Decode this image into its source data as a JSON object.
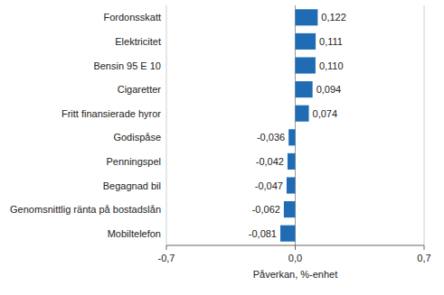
{
  "chart_data": {
    "type": "bar",
    "orientation": "horizontal",
    "x_label": "Påverkan, %-enhet",
    "categories": [
      "Fordonsskatt",
      "Elektricitet",
      "Bensin 95 E 10",
      "Cigaretter",
      "Fritt finansierade hyror",
      "Godispåse",
      "Penningspel",
      "Begagnad bil",
      "Genomsnittlig ränta på bostadslån",
      "Mobiltelefon"
    ],
    "values": [
      0.122,
      0.111,
      0.11,
      0.094,
      0.074,
      -0.036,
      -0.042,
      -0.047,
      -0.062,
      -0.081
    ],
    "value_labels": [
      "0,122",
      "0,111",
      "0,110",
      "0,094",
      "0,074",
      "-0,036",
      "-0,042",
      "-0,047",
      "-0,062",
      "-0,081"
    ],
    "color": "#1f6cb4",
    "xlim": [
      -0.7,
      0.7
    ],
    "xticks": [
      {
        "value": -0.7,
        "label": "-0,7"
      },
      {
        "value": 0.0,
        "label": "0,0"
      },
      {
        "value": 0.7,
        "label": "0,7"
      }
    ],
    "grid": true,
    "data_labels": true
  }
}
